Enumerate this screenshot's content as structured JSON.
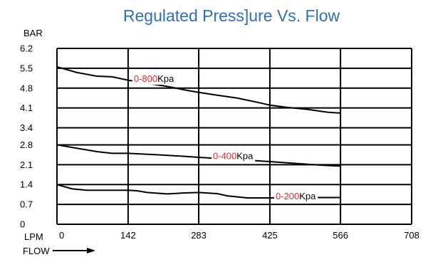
{
  "chart_data": {
    "type": "line",
    "title": "Regulated Press]ure Vs. Flow",
    "ylabel": "BAR",
    "xlabel_unit": "LPM",
    "xlabel": "FLOW",
    "xlim": [
      0,
      708
    ],
    "ylim": [
      0,
      6.2
    ],
    "x_ticks": [
      "0",
      "142",
      "283",
      "425",
      "566",
      "708"
    ],
    "y_ticks": [
      "0",
      "0.7",
      "1.4",
      "2.1",
      "2.8",
      "3.4",
      "4.1",
      "4.8",
      "5.5",
      "6.2"
    ],
    "grid": true,
    "series": [
      {
        "range_part": "0-800",
        "unit_part": "Kpa",
        "x": [
          0,
          40,
          80,
          110,
          142,
          180,
          220,
          260,
          283,
          320,
          360,
          400,
          425,
          460,
          500,
          540,
          566
        ],
        "y": [
          5.55,
          5.35,
          5.22,
          5.2,
          5.08,
          4.97,
          4.86,
          4.72,
          4.65,
          4.55,
          4.45,
          4.3,
          4.2,
          4.12,
          4.05,
          3.95,
          3.92
        ]
      },
      {
        "range_part": "0-400",
        "unit_part": "Kpa",
        "x": [
          0,
          40,
          80,
          110,
          142,
          200,
          250,
          283,
          330,
          380,
          425,
          480,
          530,
          566
        ],
        "y": [
          2.8,
          2.68,
          2.56,
          2.5,
          2.5,
          2.45,
          2.4,
          2.36,
          2.31,
          2.26,
          2.21,
          2.14,
          2.08,
          2.05
        ]
      },
      {
        "range_part": "0-200",
        "unit_part": "Kpa",
        "x": [
          0,
          30,
          60,
          100,
          142,
          160,
          180,
          220,
          250,
          283,
          320,
          340,
          380,
          425,
          480,
          566
        ],
        "y": [
          1.4,
          1.25,
          1.2,
          1.2,
          1.2,
          1.18,
          1.12,
          1.07,
          1.1,
          1.12,
          1.08,
          1.0,
          0.93,
          0.93,
          0.94,
          0.94
        ]
      }
    ]
  },
  "flow_arrow_icon": "arrow-right-icon"
}
